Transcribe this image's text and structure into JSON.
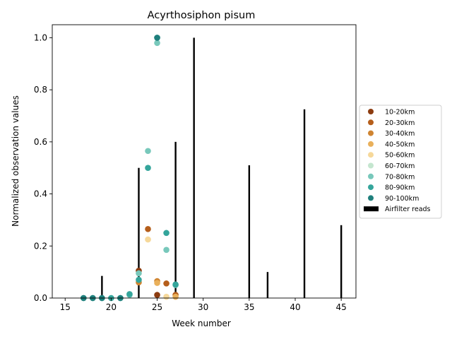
{
  "chart_data": {
    "type": "scatter",
    "title": "Acyrthosiphon pisum",
    "xlabel": "Week number",
    "ylabel": "Normalized observation values",
    "xlim": [
      13.6,
      46.6
    ],
    "ylim": [
      0,
      1.05
    ],
    "xticks": [
      15,
      20,
      25,
      30,
      35,
      40,
      45
    ],
    "yticks": [
      0.0,
      0.2,
      0.4,
      0.6,
      0.8,
      1.0
    ],
    "grid": false,
    "legend_position": "center-right-outside",
    "bar_series": {
      "name": "Airfilter reads",
      "color": "#000000",
      "points": [
        {
          "x": 19,
          "y": 0.085
        },
        {
          "x": 23,
          "y": 0.5
        },
        {
          "x": 27,
          "y": 0.6
        },
        {
          "x": 29,
          "y": 1.0
        },
        {
          "x": 35,
          "y": 0.51
        },
        {
          "x": 37,
          "y": 0.1
        },
        {
          "x": 41,
          "y": 0.725
        },
        {
          "x": 45,
          "y": 0.28
        }
      ]
    },
    "series": [
      {
        "name": "10-20km",
        "color": "#8c3c10",
        "points": [
          {
            "x": 23,
            "y": 0.105
          },
          {
            "x": 25,
            "y": 0.012
          }
        ]
      },
      {
        "name": "20-30km",
        "color": "#b55e1b",
        "points": [
          {
            "x": 24,
            "y": 0.265
          },
          {
            "x": 26,
            "y": 0.056
          },
          {
            "x": 27,
            "y": 0.012
          }
        ]
      },
      {
        "name": "30-40km",
        "color": "#cf8431",
        "points": [
          {
            "x": 23,
            "y": 0.06
          },
          {
            "x": 25,
            "y": 0.065
          }
        ]
      },
      {
        "name": "40-50km",
        "color": "#e9b05b",
        "points": [
          {
            "x": 25,
            "y": 0.058
          },
          {
            "x": 27,
            "y": 0.005
          }
        ]
      },
      {
        "name": "50-60km",
        "color": "#f6d89a",
        "points": [
          {
            "x": 24,
            "y": 0.225
          },
          {
            "x": 26,
            "y": 0.005
          }
        ]
      },
      {
        "name": "60-70km",
        "color": "#c4e6cf",
        "points": []
      },
      {
        "name": "70-80km",
        "color": "#78c8bb",
        "points": [
          {
            "x": 17,
            "y": 0.0
          },
          {
            "x": 18,
            "y": 0.0
          },
          {
            "x": 19,
            "y": 0.0
          },
          {
            "x": 20,
            "y": 0.0
          },
          {
            "x": 21,
            "y": 0.0
          },
          {
            "x": 22,
            "y": 0.012
          },
          {
            "x": 23,
            "y": 0.095
          },
          {
            "x": 24,
            "y": 0.565
          },
          {
            "x": 25,
            "y": 0.98
          },
          {
            "x": 26,
            "y": 0.185
          },
          {
            "x": 27,
            "y": 0.05
          }
        ]
      },
      {
        "name": "80-90km",
        "color": "#34a59b",
        "points": [
          {
            "x": 17,
            "y": 0.0
          },
          {
            "x": 18,
            "y": 0.0
          },
          {
            "x": 19,
            "y": 0.0
          },
          {
            "x": 20,
            "y": 0.0
          },
          {
            "x": 21,
            "y": 0.0
          },
          {
            "x": 22,
            "y": 0.015
          },
          {
            "x": 23,
            "y": 0.07
          },
          {
            "x": 24,
            "y": 0.5
          },
          {
            "x": 25,
            "y": 1.0
          },
          {
            "x": 26,
            "y": 0.25
          },
          {
            "x": 27,
            "y": 0.052
          }
        ]
      },
      {
        "name": "90-100km",
        "color": "#1f7f7c",
        "points": [
          {
            "x": 17,
            "y": 0.0
          },
          {
            "x": 18,
            "y": 0.0
          },
          {
            "x": 19,
            "y": 0.0
          },
          {
            "x": 21,
            "y": 0.0
          },
          {
            "x": 25,
            "y": 1.0
          }
        ]
      }
    ]
  }
}
